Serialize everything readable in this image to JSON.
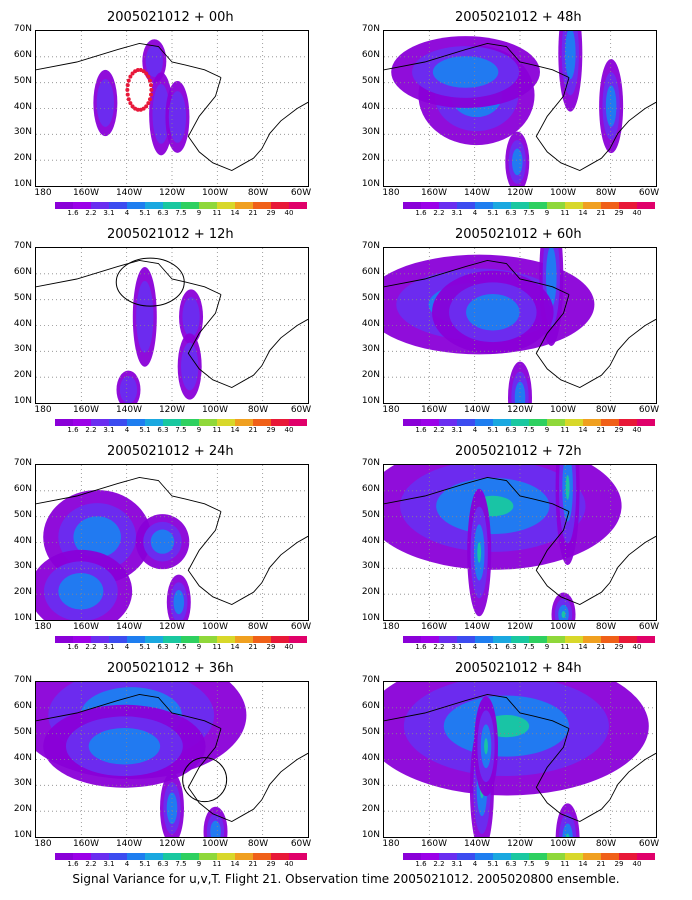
{
  "caption": "Signal Variance for u,v,T. Flight 21. Observation time 2005021012. 2005020800 ensemble.",
  "y_labels": [
    "70N",
    "60N",
    "50N",
    "40N",
    "30N",
    "20N",
    "10N"
  ],
  "x_labels": [
    "180",
    "160W",
    "140W",
    "120W",
    "100W",
    "80W",
    "60W"
  ],
  "contour_levels": [
    "1.6",
    "2.2",
    "3.1",
    "4",
    "5.1",
    "6.3",
    "7.5",
    "9",
    "11",
    "14",
    "21",
    "29",
    "40"
  ],
  "colors": [
    "#8a00d8",
    "#9b00e8",
    "#6a2df0",
    "#3c4cf0",
    "#1e7ef0",
    "#1aa8e0",
    "#19c8a0",
    "#2ed060",
    "#8fd83a",
    "#d8d82a",
    "#f0a020",
    "#f06018",
    "#e81838",
    "#e0006a"
  ],
  "panels": [
    {
      "title": "2005021012 + 00h",
      "intensity": 1,
      "circle": false,
      "dots": true,
      "blobs": [
        [
          0.62,
          0.13,
          0.25,
          0.05
        ],
        [
          0.64,
          0.47,
          0.28,
          0.12
        ],
        [
          0.74,
          0.49,
          0.3,
          0.1
        ],
        [
          0.29,
          0.4,
          0.22,
          0.09
        ]
      ]
    },
    {
      "title": "2005021012 + 48h",
      "intensity": 2,
      "circle": false,
      "dots": false,
      "blobs": [
        [
          0.2,
          0.35,
          0.48,
          0.15
        ],
        [
          0.82,
          0.08,
          0.55,
          0.18
        ],
        [
          0.95,
          0.42,
          0.72,
          0.14
        ],
        [
          0.1,
          0.2,
          0.5,
          0.1
        ],
        [
          0.6,
          0.78,
          0.38,
          0.08
        ]
      ]
    },
    {
      "title": "2005021012 + 12h",
      "intensity": 1,
      "circle": true,
      "dots": false,
      "blobs": [
        [
          0.6,
          0.38,
          0.2,
          0.15
        ],
        [
          0.66,
          0.38,
          0.48,
          0.07
        ],
        [
          0.68,
          0.7,
          0.45,
          0.09
        ],
        [
          0.58,
          0.85,
          0.1,
          0.04
        ]
      ]
    },
    {
      "title": "2005021012 + 60h",
      "intensity": 2,
      "circle": false,
      "dots": false,
      "blobs": [
        [
          0.0,
          0.3,
          0.7,
          0.15
        ],
        [
          0.78,
          0.12,
          0.45,
          0.22
        ],
        [
          0.25,
          0.35,
          0.55,
          0.12
        ],
        [
          0.6,
          0.9,
          0.4,
          0.1
        ]
      ]
    },
    {
      "title": "2005021012 + 24h",
      "intensity": 2,
      "circle": false,
      "dots": false,
      "blobs": [
        [
          0.1,
          0.4,
          0.35,
          0.14
        ],
        [
          0.44,
          0.43,
          0.49,
          0.07
        ],
        [
          0.05,
          0.75,
          0.28,
          0.12
        ],
        [
          0.7,
          0.82,
          0.35,
          0.07
        ]
      ]
    },
    {
      "title": "2005021012 + 72h",
      "intensity": 3,
      "circle": false,
      "dots": false,
      "blobs": [
        [
          0.0,
          0.2,
          0.8,
          0.2
        ],
        [
          0.8,
          0.08,
          0.55,
          0.25
        ],
        [
          0.4,
          0.5,
          0.3,
          0.2
        ],
        [
          0.82,
          0.9,
          0.5,
          0.05
        ]
      ]
    },
    {
      "title": "2005021012 + 36h",
      "intensity": 2,
      "circle": true,
      "dots": false,
      "blobs": [
        [
          0.0,
          0.15,
          0.7,
          0.2
        ],
        [
          0.1,
          0.35,
          0.55,
          0.12
        ],
        [
          0.6,
          0.75,
          0.4,
          0.1
        ],
        [
          0.72,
          0.9,
          0.6,
          0.06
        ]
      ]
    },
    {
      "title": "2005021012 + 84h",
      "intensity": 3,
      "circle": false,
      "dots": false,
      "blobs": [
        [
          0.0,
          0.22,
          0.9,
          0.22
        ],
        [
          0.4,
          0.62,
          0.32,
          0.2
        ],
        [
          0.75,
          0.95,
          0.6,
          0.1
        ],
        [
          0.55,
          0.35,
          0.2,
          0.15
        ]
      ]
    }
  ]
}
